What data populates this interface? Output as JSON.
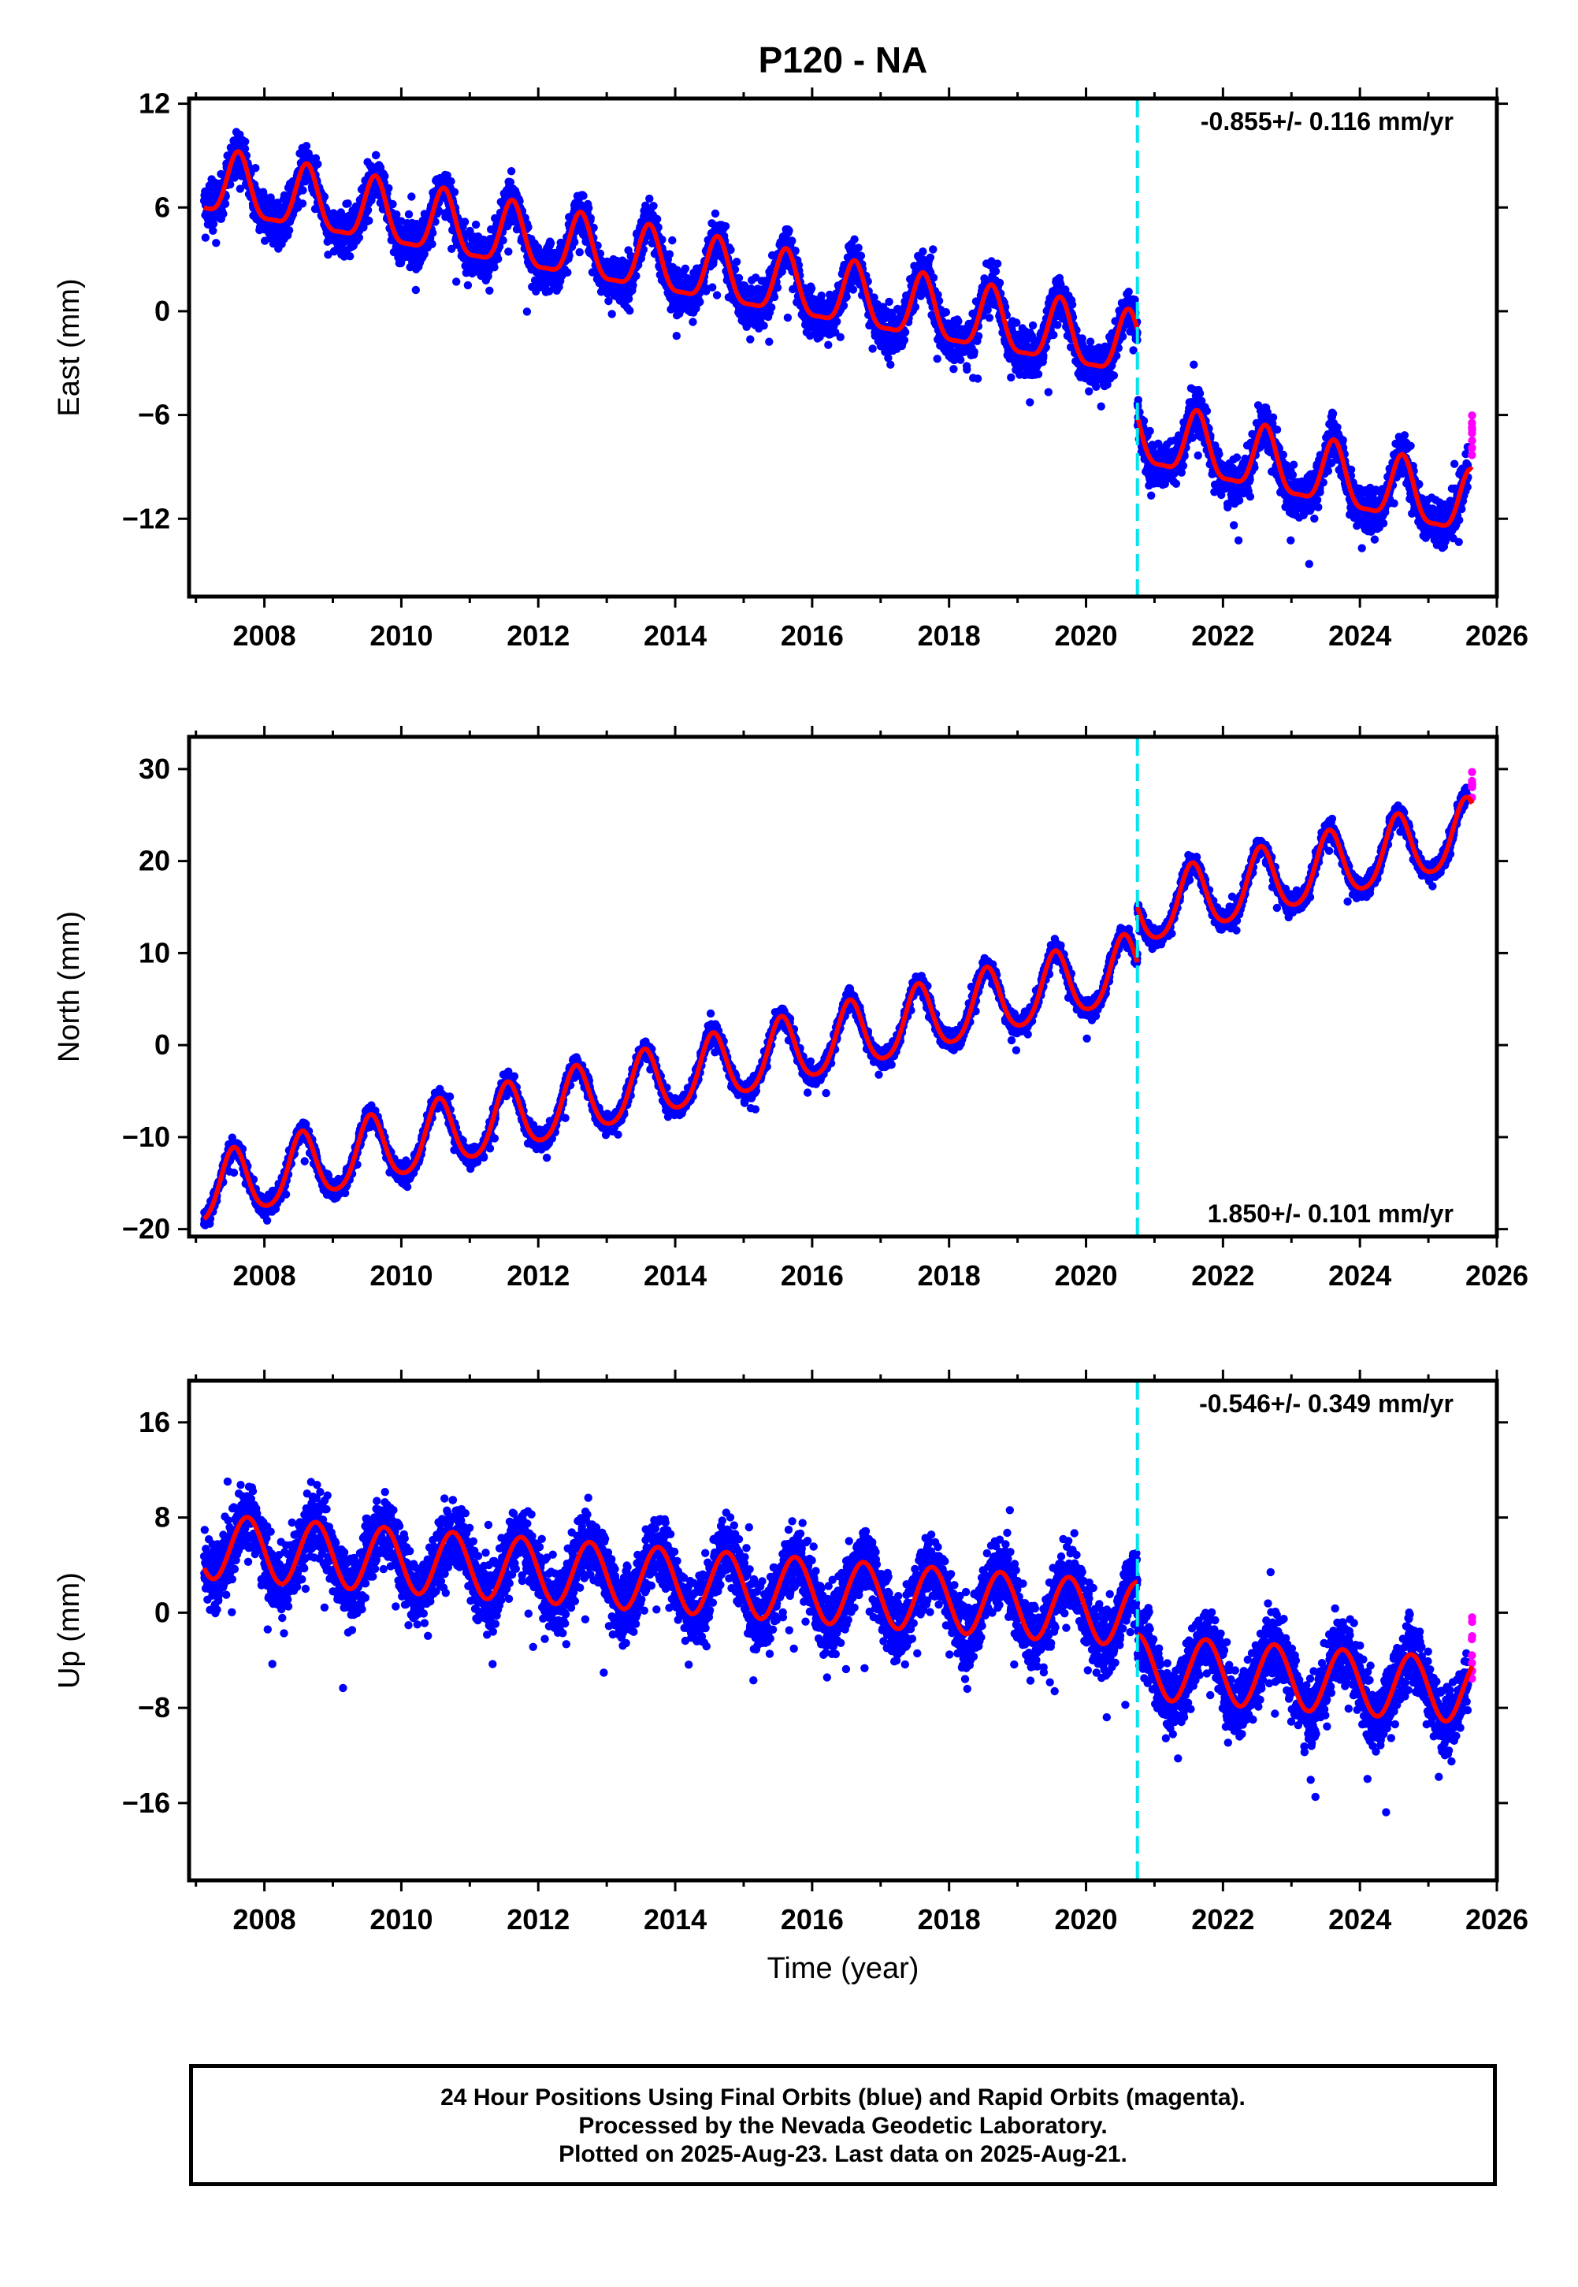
{
  "title": "P120 - NA",
  "xlabel": "Time (year)",
  "footer": {
    "line1": "24 Hour Positions Using Final Orbits (blue) and Rapid Orbits (magenta).",
    "line2": "Processed by the Nevada Geodetic Laboratory.",
    "line3": "Plotted on 2025-Aug-23. Last data on 2025-Aug-21."
  },
  "colors": {
    "final_orbits": "#0000ff",
    "rapid_orbits": "#ff00ff",
    "model_fit": "#ff0000",
    "equipment_change": "#00e5ee"
  },
  "chart_data": [
    {
      "type": "scatter",
      "component": "east",
      "ylabel": "East (mm)",
      "rate_label": "-0.855+/- 0.116 mm/yr",
      "rate_position": "top-right",
      "xlim": [
        2006.9,
        2026.0
      ],
      "ylim": [
        -16.5,
        12.3
      ],
      "yticks": [
        -12,
        -6,
        0,
        6,
        12
      ],
      "xticks": [
        2008,
        2010,
        2012,
        2014,
        2016,
        2018,
        2020,
        2022,
        2024,
        2026
      ],
      "step_epoch": 2020.75,
      "data_start": 2007.12,
      "data_end": 2025.64,
      "rapid_start": 2025.58,
      "model": {
        "t0": 2007.1,
        "trend_mm_per_yr": -0.6,
        "segments": [
          {
            "start": 2007.1,
            "end": 2020.75,
            "offset": 7.3,
            "extra_rate": -0.1
          },
          {
            "start": 2020.75,
            "end": 2025.64,
            "offset": 0.9,
            "extra_rate": -0.25
          }
        ],
        "annual_amplitude": 1.8,
        "annual_phase_peak": 0.62,
        "semiannual_amplitude": 0.5
      },
      "scatter_noise_mm": 1.6
    },
    {
      "type": "scatter",
      "component": "north",
      "ylabel": "North (mm)",
      "rate_label": "1.850+/- 0.101 mm/yr",
      "rate_position": "bottom-right",
      "xlim": [
        2006.9,
        2026.0
      ],
      "ylim": [
        -20.8,
        33.5
      ],
      "yticks": [
        -20,
        -10,
        0,
        10,
        20,
        30
      ],
      "xticks": [
        2008,
        2010,
        2012,
        2014,
        2016,
        2018,
        2020,
        2022,
        2024,
        2026
      ],
      "step_epoch": 2020.75,
      "data_start": 2007.12,
      "data_end": 2025.64,
      "rapid_start": 2025.58,
      "model": {
        "t0": 2007.1,
        "trend_mm_per_yr": 1.78,
        "segments": [
          {
            "start": 2007.1,
            "end": 2020.75,
            "offset": -16.0,
            "extra_rate": 0.0
          },
          {
            "start": 2020.75,
            "end": 2025.64,
            "offset": -10.0,
            "extra_rate": 0.0
          }
        ],
        "annual_amplitude": 3.6,
        "annual_phase_peak": 0.55,
        "semiannual_amplitude": 0.5
      },
      "scatter_noise_mm": 1.3
    },
    {
      "type": "scatter",
      "component": "up",
      "ylabel": "Up (mm)",
      "rate_label": "-0.546+/- 0.349 mm/yr",
      "rate_position": "top-right",
      "xlim": [
        2006.9,
        2026.0
      ],
      "ylim": [
        -22.5,
        19.5
      ],
      "yticks": [
        -16,
        -8,
        0,
        8,
        16
      ],
      "xticks": [
        2008,
        2010,
        2012,
        2014,
        2016,
        2018,
        2020,
        2022,
        2024,
        2026
      ],
      "step_epoch": 2020.75,
      "data_start": 2007.12,
      "data_end": 2025.64,
      "rapid_start": 2025.58,
      "model": {
        "t0": 2007.1,
        "trend_mm_per_yr": -0.42,
        "segments": [
          {
            "start": 2007.1,
            "end": 2020.75,
            "offset": 5.6,
            "extra_rate": 0.0
          },
          {
            "start": 2020.75,
            "end": 2025.64,
            "offset": 1.2,
            "extra_rate": 0.0
          }
        ],
        "annual_amplitude": 2.7,
        "annual_phase_peak": 0.75,
        "semiannual_amplitude": 0.0
      },
      "scatter_noise_mm": 3.6
    }
  ]
}
